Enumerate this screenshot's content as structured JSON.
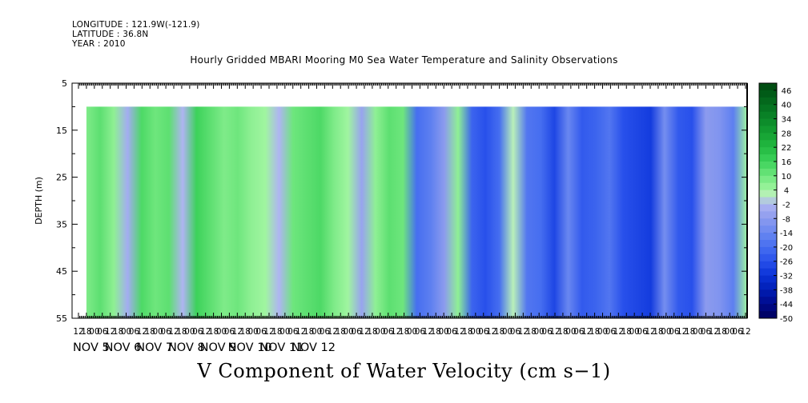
{
  "header": {
    "longitude": "LONGITUDE : 121.9W(-121.9)",
    "latitude": "LATITUDE : 36.8N",
    "year": "YEAR : 2010"
  },
  "chart_data": {
    "type": "heatmap",
    "title": "Hourly Gridded MBARI Mooring M0 Sea Water Temperature and Salinity Observations",
    "xlabel": "",
    "ylabel": "DEPTH (m)",
    "caption": "V Component of Water Velocity (cm s−1)",
    "ylim": [
      55,
      5
    ],
    "y_ticks": [
      5,
      15,
      25,
      35,
      45,
      55
    ],
    "x_hour_ticks": [
      "12",
      "18",
      "00",
      "06",
      "12",
      "18",
      "00",
      "06",
      "12",
      "18",
      "00",
      "06",
      "12",
      "18",
      "00",
      "06",
      "12",
      "18",
      "00",
      "06",
      "12",
      "18",
      "00",
      "06",
      "12",
      "18",
      "00",
      "06",
      "12",
      "18",
      "00",
      "06",
      "12",
      "18",
      "00",
      "06",
      "12",
      "18",
      "00",
      "06",
      "12",
      "18",
      "00",
      "06",
      "12",
      "18",
      "00",
      "06",
      "12",
      "18",
      "00",
      "06",
      "12",
      "18",
      "00",
      "06",
      "12",
      "18",
      "00",
      "06",
      "12",
      "18",
      "00",
      "06",
      "12",
      "18",
      "00",
      "06",
      "12",
      "18",
      "00",
      "06",
      "12",
      "18",
      "00",
      "06",
      "12",
      "18",
      "00",
      "06",
      "12",
      "18",
      "00",
      "06",
      "12"
    ],
    "x_day_labels": [
      "NOV  5",
      "NOV  6",
      "NOV  7",
      "NOV  8",
      "NOV  9",
      "NOV 10",
      "NOV 11",
      "NOV 12"
    ],
    "data_depth_range": [
      10,
      55
    ],
    "v_velocity_by_6h_interval": [
      8,
      12,
      6,
      -4,
      14,
      10,
      12,
      -2,
      16,
      12,
      8,
      10,
      6,
      4,
      -2,
      10,
      12,
      14,
      8,
      4,
      -6,
      6,
      12,
      10,
      -20,
      -16,
      -8,
      6,
      -22,
      -26,
      -20,
      2,
      -18,
      -20,
      -28,
      -14,
      -24,
      -22,
      -18,
      -26,
      -28,
      -30,
      -12,
      -24,
      -26,
      -8,
      -10,
      -16,
      4
    ],
    "colorbar": {
      "labels": [
        "46",
        "40",
        "34",
        "28",
        "22",
        "16",
        "10",
        "4",
        "-2",
        "-8",
        "-14",
        "-20",
        "-26",
        "-32",
        "-38",
        "-44",
        "-50"
      ],
      "range": [
        -50,
        49
      ],
      "step": 3
    }
  }
}
